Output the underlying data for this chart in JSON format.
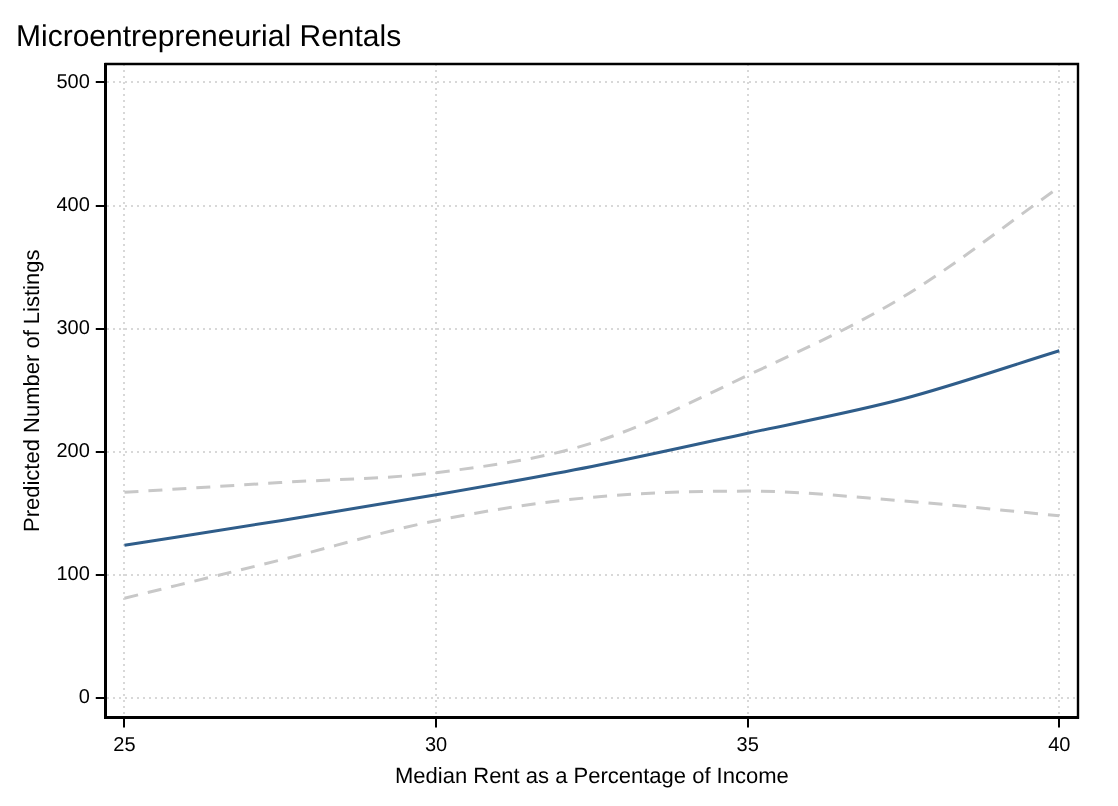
{
  "chart_data": {
    "type": "line",
    "title": "Microentrepreneurial Rentals",
    "xlabel": "Median Rent as a Percentage of Income",
    "ylabel": "Predicted Number of Listings",
    "x": [
      25,
      27.5,
      30,
      32.5,
      35,
      37.5,
      40
    ],
    "series": [
      {
        "color": "#c8c8c8",
        "line_style": "dashed",
        "values": [
          167,
          175,
          183,
          207,
          262,
          326,
          415
        ]
      },
      {
        "color": "#c8c8c8",
        "line_style": "dashed",
        "values": [
          81,
          112,
          144,
          163,
          168,
          160,
          148
        ]
      },
      {
        "color": "#2f5d8a",
        "line_style": "solid",
        "values": [
          124,
          144,
          165,
          188,
          215,
          243,
          282
        ]
      }
    ],
    "xlim": [
      24.7,
      40.3
    ],
    "ylim": [
      -16,
      515
    ],
    "xticks": [
      25,
      30,
      35,
      40
    ],
    "yticks": [
      0,
      100,
      200,
      300,
      400,
      500
    ],
    "grid": true,
    "legend": false,
    "marker": "none"
  }
}
